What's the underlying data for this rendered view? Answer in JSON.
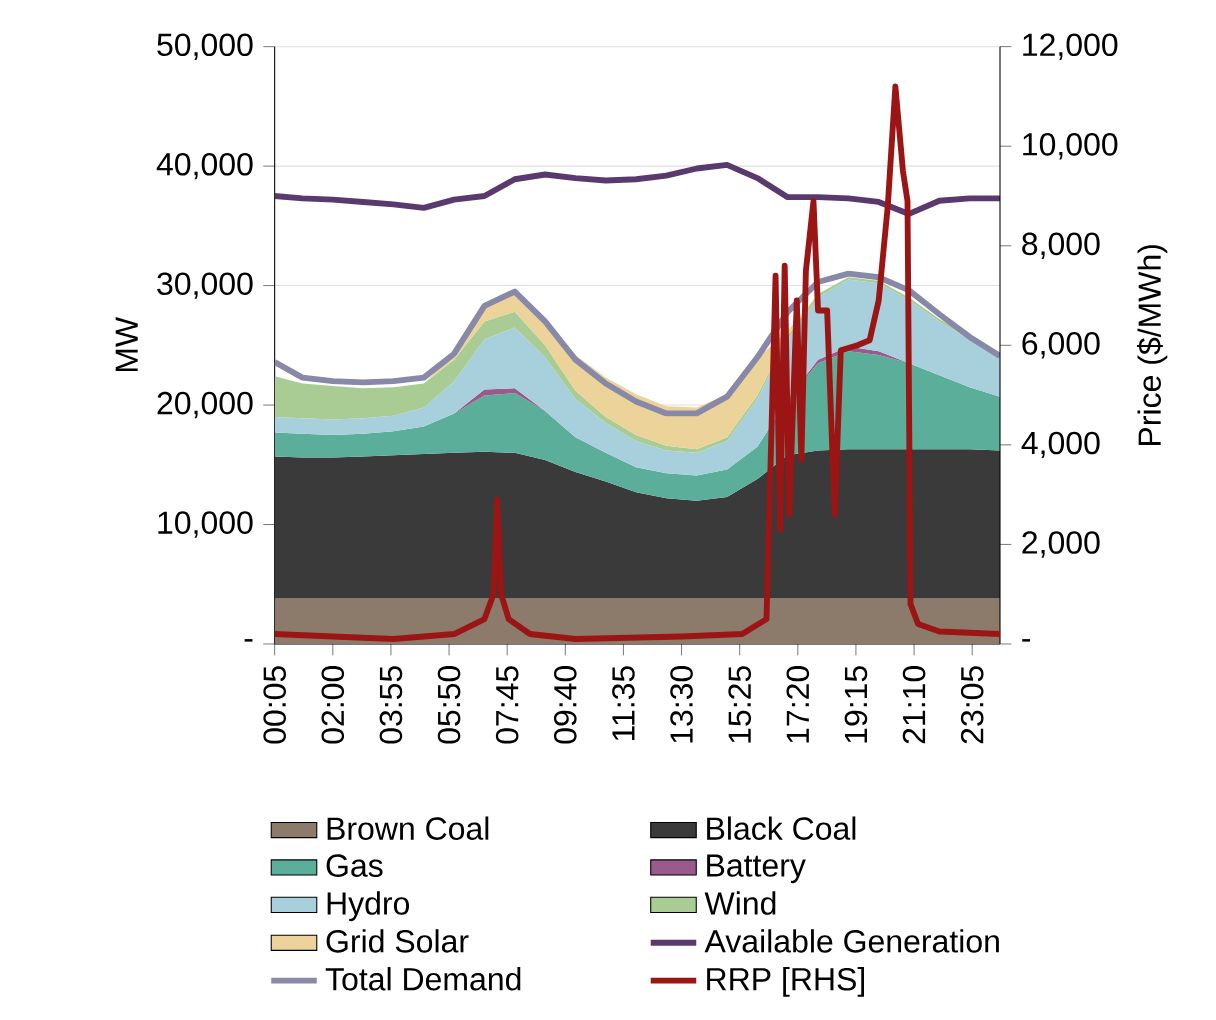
{
  "chart_data": {
    "type": "area",
    "stacked": true,
    "ylabel": "MW",
    "y2label": "Price ($/MWh)",
    "grid": "y",
    "legend": "bottom",
    "x": [
      0.0833,
      1,
      2,
      3,
      4,
      5,
      6,
      7,
      8,
      9,
      10,
      11,
      12,
      13,
      14,
      15,
      16,
      17,
      18,
      19,
      20,
      21,
      22,
      23,
      24
    ],
    "xlim": [
      0.0833,
      24
    ],
    "xticks": [
      {
        "value": 0.0833,
        "label": "00:05"
      },
      {
        "value": 2,
        "label": "02:00"
      },
      {
        "value": 3.9167,
        "label": "03:55"
      },
      {
        "value": 5.8333,
        "label": "05:50"
      },
      {
        "value": 7.75,
        "label": "07:45"
      },
      {
        "value": 9.6667,
        "label": "09:40"
      },
      {
        "value": 11.5833,
        "label": "11:35"
      },
      {
        "value": 13.5,
        "label": "13:30"
      },
      {
        "value": 15.4167,
        "label": "15:25"
      },
      {
        "value": 17.3333,
        "label": "17:20"
      },
      {
        "value": 19.25,
        "label": "19:15"
      },
      {
        "value": 21.1667,
        "label": "21:10"
      },
      {
        "value": 23.0833,
        "label": "23:05"
      }
    ],
    "ylim": [
      0,
      50000
    ],
    "yticks": [
      {
        "value": 0,
        "label": "-"
      },
      {
        "value": 10000,
        "label": "10,000"
      },
      {
        "value": 20000,
        "label": "20,000"
      },
      {
        "value": 30000,
        "label": "30,000"
      },
      {
        "value": 40000,
        "label": "40,000"
      },
      {
        "value": 50000,
        "label": "50,000"
      }
    ],
    "y2lim": [
      0,
      12000
    ],
    "y2ticks": [
      {
        "value": 0,
        "label": "-"
      },
      {
        "value": 2000,
        "label": "2,000"
      },
      {
        "value": 4000,
        "label": "4,000"
      },
      {
        "value": 6000,
        "label": "6,000"
      },
      {
        "value": 8000,
        "label": "8,000"
      },
      {
        "value": 10000,
        "label": "10,000"
      },
      {
        "value": 12000,
        "label": "12,000"
      }
    ],
    "series": [
      {
        "name": "Brown Coal",
        "color": "#8c7b6b",
        "values": [
          3800,
          3800,
          3800,
          3800,
          3800,
          3800,
          3800,
          3800,
          3800,
          3800,
          3800,
          3800,
          3800,
          3800,
          3800,
          3800,
          3800,
          3800,
          3800,
          3800,
          3800,
          3800,
          3800,
          3800,
          3800
        ]
      },
      {
        "name": "Black Coal",
        "color": "#3a3a3a",
        "values": [
          11900,
          11800,
          11800,
          11900,
          12000,
          12100,
          12200,
          12300,
          12200,
          11600,
          10600,
          9800,
          8900,
          8400,
          8200,
          8500,
          10000,
          12000,
          12400,
          12500,
          12500,
          12500,
          12500,
          12500,
          12400
        ]
      },
      {
        "name": "Gas",
        "color": "#5aae9a",
        "values": [
          2000,
          2000,
          1900,
          1900,
          2000,
          2300,
          3300,
          4700,
          5000,
          4100,
          2900,
          2400,
          2100,
          2100,
          2100,
          2300,
          2700,
          4700,
          7300,
          8200,
          7900,
          7200,
          6200,
          5200,
          4500
        ]
      },
      {
        "name": "Battery",
        "color": "#9a5a8c",
        "values": [
          0,
          0,
          0,
          0,
          0,
          0,
          0,
          500,
          400,
          0,
          0,
          0,
          0,
          0,
          0,
          0,
          0,
          0,
          300,
          400,
          300,
          0,
          0,
          0,
          0
        ]
      },
      {
        "name": "Hydro",
        "color": "#a8d0dc",
        "values": [
          1300,
          1300,
          1300,
          1300,
          1300,
          1600,
          2700,
          4200,
          5100,
          4500,
          3200,
          2500,
          2200,
          1900,
          1900,
          2400,
          4000,
          5000,
          5200,
          5600,
          5700,
          5300,
          4500,
          4000,
          3600
        ]
      },
      {
        "name": "Wind",
        "color": "#a8cc94",
        "values": [
          3400,
          2900,
          2800,
          2500,
          2400,
          2000,
          1800,
          1500,
          1300,
          1000,
          700,
          500,
          500,
          400,
          300,
          300,
          300,
          300,
          300,
          200,
          200,
          200,
          200,
          200,
          100
        ]
      },
      {
        "name": "Grid Solar",
        "color": "#ecd39a",
        "values": [
          0,
          0,
          0,
          0,
          0,
          0,
          500,
          1400,
          1700,
          2200,
          3000,
          3300,
          3400,
          3300,
          3500,
          3600,
          3100,
          400,
          0,
          0,
          0,
          0,
          0,
          0,
          0
        ]
      },
      {
        "name": "Available Generation",
        "type": "line",
        "color": "#5a3a6e",
        "values": [
          37500,
          37300,
          37200,
          37000,
          36800,
          36500,
          37200,
          37500,
          38900,
          39300,
          39000,
          38800,
          38900,
          39200,
          39800,
          40100,
          39000,
          37400,
          37400,
          37300,
          37000,
          36000,
          37100,
          37300,
          37300
        ]
      },
      {
        "name": "Total Demand",
        "type": "line",
        "color": "#8888a8",
        "values": [
          23600,
          22300,
          22000,
          21900,
          22000,
          22300,
          24300,
          28300,
          29500,
          27000,
          23800,
          21800,
          20300,
          19300,
          19300,
          20700,
          24000,
          27800,
          30300,
          31000,
          30700,
          29600,
          27600,
          25700,
          24100
        ]
      },
      {
        "name": "RRP [RHS]",
        "type": "line",
        "axis": "y2",
        "color": "#9b1515",
        "x": [
          0.0833,
          2,
          4,
          6,
          7.0,
          7.3,
          7.42,
          7.55,
          7.8,
          8.5,
          10,
          13.5,
          15.5,
          16.3,
          16.6,
          16.75,
          16.9,
          17.05,
          17.3,
          17.45,
          17.6,
          17.85,
          18.0,
          18.3,
          18.55,
          18.75,
          19.3,
          19.7,
          20.0,
          20.3,
          20.55,
          20.8,
          20.95,
          21.05,
          21.3,
          22,
          24
        ],
        "values": [
          200,
          150,
          100,
          200,
          500,
          1000,
          2900,
          1000,
          500,
          200,
          100,
          150,
          200,
          500,
          7400,
          2300,
          7600,
          2600,
          6900,
          3700,
          7500,
          8900,
          6700,
          6700,
          2600,
          5900,
          6000,
          6100,
          6900,
          8800,
          11200,
          9500,
          8900,
          800,
          400,
          250,
          200
        ]
      }
    ]
  }
}
